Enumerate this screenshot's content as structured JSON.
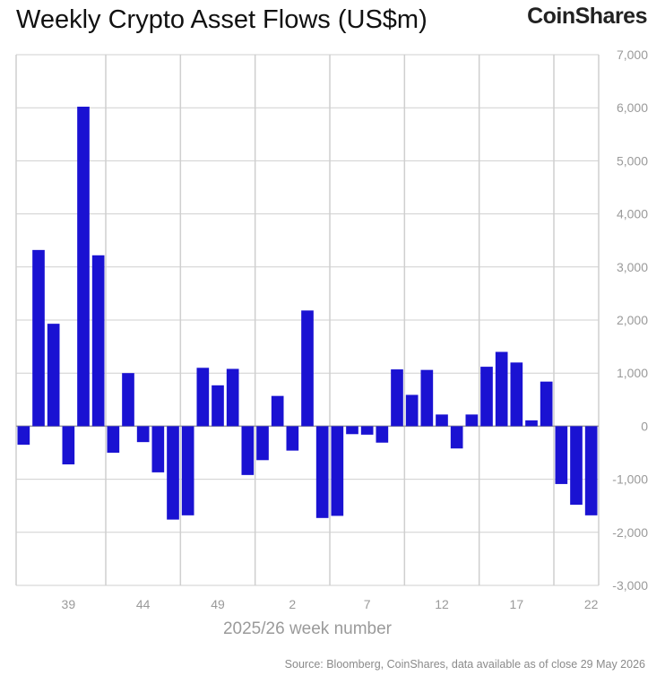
{
  "header": {
    "title": "Weekly Crypto Asset Flows (US$m)",
    "brand": "CoinShares"
  },
  "footer": {
    "source": "Source: Bloomberg, CoinShares, data available as of close 29 May 2026"
  },
  "colors": {
    "bar": "#1a12d2",
    "grid": "#cfcfcf",
    "axis_text": "#9a9a9a",
    "zero_line": "#9a9a9a"
  },
  "chart_data": {
    "type": "bar",
    "title": "Weekly Crypto Asset Flows (US$m)",
    "xlabel": "2025/26 week number",
    "ylabel": "",
    "ylim": [
      -3000,
      7000
    ],
    "y_ticks": [
      7000,
      6000,
      5000,
      4000,
      3000,
      2000,
      1000,
      0,
      -1000,
      -2000,
      -3000
    ],
    "y_tick_labels": [
      "7,000",
      "6,000",
      "5,000",
      "4,000",
      "3,000",
      "2,000",
      "1,000",
      "0",
      "-1,000",
      "-2,000",
      "-3,000"
    ],
    "x_tick_labels": [
      "39",
      "44",
      "49",
      "2",
      "7",
      "12",
      "17",
      "22"
    ],
    "grid": true,
    "y_axis_side": "right",
    "categories": [
      "36",
      "37",
      "38",
      "39",
      "40",
      "41",
      "42",
      "43",
      "44",
      "45",
      "46",
      "47",
      "48",
      "49",
      "50",
      "51",
      "52",
      "1",
      "2",
      "3",
      "4",
      "5",
      "6",
      "7",
      "8",
      "9",
      "10",
      "11",
      "12",
      "13",
      "14",
      "15",
      "16",
      "17",
      "18",
      "19",
      "20",
      "21",
      "22"
    ],
    "values": [
      -350,
      3320,
      1930,
      -720,
      6020,
      3220,
      -500,
      1000,
      -300,
      -870,
      -1760,
      -1680,
      1100,
      770,
      1080,
      -920,
      -640,
      570,
      -460,
      2180,
      -1730,
      -1690,
      -150,
      -160,
      -310,
      1070,
      590,
      1060,
      220,
      -420,
      220,
      1120,
      1400,
      1200,
      110,
      840,
      -1090,
      -1480,
      -1680
    ]
  }
}
